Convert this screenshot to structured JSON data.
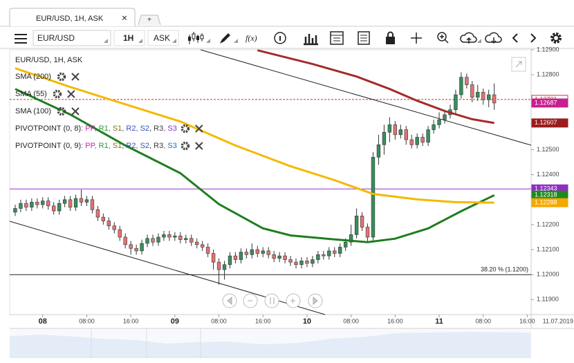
{
  "tab": {
    "title": "EUR/USD, 1H, ASK",
    "close": "×",
    "new": "+"
  },
  "toolbar": {
    "symbol": "EUR/USD",
    "interval": "1H",
    "side": "ASK",
    "function": "f(x)"
  },
  "legend": {
    "instrument": "EUR/USD, 1H, ASK",
    "pivots": [
      {
        "name": "PIVOTPOINT (0, 8)",
        "parts": [
          {
            "text": ": PP",
            "color": "#c71fb5"
          },
          {
            "text": ", R1",
            "color": "#1f9e3a"
          },
          {
            "text": ", S1",
            "color": "#8a6d1f"
          },
          {
            "text": ", R2",
            "color": "#3b4fb8"
          },
          {
            "text": ", S2",
            "color": "#3b4fb8"
          },
          {
            "text": ", R3",
            "color": "#3a3a3a"
          },
          {
            "text": ", S3",
            "color": "#8e2fc2"
          }
        ]
      },
      {
        "name": "PIVOTPOINT (0, 9)",
        "parts": [
          {
            "text": ": PP",
            "color": "#c71fb5"
          },
          {
            "text": ", R1",
            "color": "#1f9e3a"
          },
          {
            "text": ", S1",
            "color": "#8a6d1f"
          },
          {
            "text": ", R2",
            "color": "#3b4fb8"
          },
          {
            "text": ", S2",
            "color": "#3b4fb8"
          },
          {
            "text": ", R3",
            "color": "#3a3a3a"
          },
          {
            "text": ", S3",
            "color": "#1f6fb8"
          }
        ]
      }
    ]
  },
  "chart_data": {
    "type": "candlestick",
    "xlim": [
      -6,
      88.7
    ],
    "ylim": [
      1.1184,
      1.129
    ],
    "xticks": [
      {
        "value": 0,
        "label": "08"
      },
      {
        "value": 8,
        "label": "08:00"
      },
      {
        "value": 16,
        "label": "16:00"
      },
      {
        "value": 24,
        "label": "09"
      },
      {
        "value": 32,
        "label": "08:00"
      },
      {
        "value": 40,
        "label": "16:00"
      },
      {
        "value": 48,
        "label": "10"
      },
      {
        "value": 56,
        "label": "08:00"
      },
      {
        "value": 64,
        "label": "16:00"
      },
      {
        "value": 72,
        "label": "11"
      },
      {
        "value": 80,
        "label": "08:00"
      },
      {
        "value": 88,
        "label": "16:00"
      }
    ],
    "date_label": "11.07.2019",
    "yticks": [
      {
        "value": 1.119,
        "label": "1.11900"
      },
      {
        "value": 1.12,
        "label": "1.12000"
      },
      {
        "value": 1.121,
        "label": "1.12100"
      },
      {
        "value": 1.122,
        "label": "1.12200"
      },
      {
        "value": 1.124,
        "label": "1.12400"
      },
      {
        "value": 1.125,
        "label": "1.12500"
      },
      {
        "value": 1.128,
        "label": "1.12800"
      },
      {
        "value": 1.129,
        "label": "1.12900"
      }
    ],
    "x": [
      -5,
      -4,
      -3,
      -2,
      -1,
      0,
      1,
      2,
      3,
      4,
      5,
      6,
      7,
      8,
      9,
      10,
      11,
      12,
      13,
      14,
      15,
      16,
      17,
      18,
      19,
      20,
      21,
      22,
      23,
      24,
      25,
      26,
      27,
      28,
      29,
      30,
      31,
      32,
      33,
      34,
      35,
      36,
      37,
      38,
      39,
      40,
      41,
      42,
      43,
      44,
      45,
      46,
      47,
      48,
      49,
      50,
      51,
      52,
      53,
      54,
      55,
      56,
      57,
      58,
      59,
      60,
      61,
      62,
      63,
      64,
      65,
      66,
      67,
      68,
      69,
      70,
      71,
      72,
      73,
      74,
      75,
      76,
      77,
      78,
      79,
      80,
      81,
      82
    ],
    "open": [
      1.1225,
      1.12265,
      1.12285,
      1.1227,
      1.1229,
      1.1228,
      1.12295,
      1.12275,
      1.12255,
      1.12285,
      1.123,
      1.1227,
      1.12305,
      1.1229,
      1.123,
      1.1226,
      1.1223,
      1.12215,
      1.12195,
      1.1218,
      1.1215,
      1.1212,
      1.12105,
      1.12095,
      1.12125,
      1.12145,
      1.1213,
      1.1215,
      1.1216,
      1.1215,
      1.12155,
      1.1214,
      1.12145,
      1.1213,
      1.1212,
      1.1211,
      1.12085,
      1.1205,
      1.1202,
      1.1204,
      1.12075,
      1.1206,
      1.1209,
      1.1208,
      1.121,
      1.12085,
      1.12095,
      1.1208,
      1.12065,
      1.12075,
      1.1206,
      1.1205,
      1.1204,
      1.12055,
      1.12045,
      1.1206,
      1.1208,
      1.12075,
      1.12095,
      1.12085,
      1.1211,
      1.1213,
      1.1216,
      1.12235,
      1.1219,
      1.1215,
      1.1247,
      1.1252,
      1.1257,
      1.126,
      1.1256,
      1.1258,
      1.1254,
      1.1252,
      1.1255,
      1.1253,
      1.1258,
      1.126,
      1.1262,
      1.1264,
      1.1266,
      1.1272,
      1.1279,
      1.1276,
      1.1271,
      1.1273,
      1.127,
      1.1272
    ],
    "high": [
      1.1228,
      1.123,
      1.123,
      1.12305,
      1.12305,
      1.1231,
      1.1231,
      1.1229,
      1.123,
      1.12315,
      1.12315,
      1.1232,
      1.1234,
      1.12315,
      1.12315,
      1.12275,
      1.12245,
      1.1223,
      1.1221,
      1.12195,
      1.12165,
      1.12135,
      1.1212,
      1.1214,
      1.1216,
      1.1216,
      1.12165,
      1.12175,
      1.12175,
      1.1217,
      1.1217,
      1.1216,
      1.1216,
      1.12145,
      1.12135,
      1.12125,
      1.121,
      1.12065,
      1.12055,
      1.1209,
      1.1209,
      1.12105,
      1.12105,
      1.12125,
      1.12115,
      1.1211,
      1.1211,
      1.12095,
      1.1209,
      1.1209,
      1.12075,
      1.12065,
      1.1207,
      1.1207,
      1.12075,
      1.12095,
      1.12095,
      1.1211,
      1.1211,
      1.12125,
      1.12145,
      1.122,
      1.12265,
      1.1225,
      1.12205,
      1.1249,
      1.1256,
      1.126,
      1.1263,
      1.12615,
      1.126,
      1.12595,
      1.1256,
      1.12565,
      1.12565,
      1.12595,
      1.1262,
      1.1265,
      1.1266,
      1.1268,
      1.1274,
      1.1281,
      1.12805,
      1.12775,
      1.1276,
      1.12745,
      1.1274,
      1.12765
    ],
    "low": [
      1.12235,
      1.1225,
      1.12255,
      1.12255,
      1.12265,
      1.12265,
      1.1226,
      1.1224,
      1.1224,
      1.1227,
      1.12255,
      1.12255,
      1.12275,
      1.12275,
      1.12245,
      1.12215,
      1.122,
      1.1218,
      1.12165,
      1.12135,
      1.12105,
      1.1208,
      1.1208,
      1.1208,
      1.1211,
      1.12115,
      1.12115,
      1.12135,
      1.12135,
      1.12135,
      1.12125,
      1.12125,
      1.12115,
      1.12105,
      1.12095,
      1.1207,
      1.1202,
      1.1196,
      1.1198,
      1.12025,
      1.12045,
      1.12045,
      1.12065,
      1.12065,
      1.1207,
      1.1207,
      1.12065,
      1.1205,
      1.1205,
      1.12045,
      1.12035,
      1.12025,
      1.12025,
      1.1203,
      1.1203,
      1.12045,
      1.1206,
      1.1206,
      1.1207,
      1.1207,
      1.12095,
      1.12115,
      1.12145,
      1.12175,
      1.1213,
      1.12135,
      1.1244,
      1.1248,
      1.1253,
      1.1254,
      1.12545,
      1.1252,
      1.12505,
      1.12505,
      1.12515,
      1.12515,
      1.12565,
      1.12585,
      1.12605,
      1.12625,
      1.12645,
      1.12705,
      1.12745,
      1.1269,
      1.12695,
      1.1268,
      1.1267,
      1.1266
    ],
    "close": [
      1.12265,
      1.12285,
      1.1227,
      1.1229,
      1.1228,
      1.12295,
      1.12275,
      1.12255,
      1.12285,
      1.123,
      1.1227,
      1.12305,
      1.1229,
      1.123,
      1.1226,
      1.1223,
      1.12215,
      1.12195,
      1.1218,
      1.1215,
      1.1212,
      1.12105,
      1.12095,
      1.12125,
      1.12145,
      1.1213,
      1.1215,
      1.1216,
      1.1215,
      1.12155,
      1.1214,
      1.12145,
      1.1213,
      1.1212,
      1.1211,
      1.12085,
      1.1205,
      1.1202,
      1.1204,
      1.12075,
      1.1206,
      1.1209,
      1.1208,
      1.121,
      1.12085,
      1.12095,
      1.1208,
      1.12065,
      1.12075,
      1.1206,
      1.1205,
      1.1204,
      1.12055,
      1.12045,
      1.1206,
      1.1208,
      1.12075,
      1.12095,
      1.12085,
      1.1211,
      1.1213,
      1.1216,
      1.12235,
      1.1219,
      1.1215,
      1.1247,
      1.1252,
      1.1257,
      1.126,
      1.1256,
      1.1258,
      1.1254,
      1.1252,
      1.1255,
      1.1253,
      1.1258,
      1.126,
      1.1262,
      1.1264,
      1.1266,
      1.1272,
      1.1279,
      1.1276,
      1.1271,
      1.1273,
      1.127,
      1.1272,
      1.12687
    ],
    "up_color": "#3a8d5d",
    "down_color": "#e57373",
    "series": [
      {
        "name": "SMA (200)",
        "color": "#a52a2a",
        "x": [
          39,
          49,
          57,
          63,
          68,
          73,
          78,
          82
        ],
        "values": [
          1.12898,
          1.12843,
          1.12793,
          1.12743,
          1.12696,
          1.12655,
          1.12622,
          1.12607
        ]
      },
      {
        "name": "SMA (55)",
        "color": "#1e7d1e",
        "x": [
          -5,
          5,
          15,
          25,
          32,
          40,
          45,
          53,
          59,
          64,
          70,
          76,
          82
        ],
        "values": [
          1.12743,
          1.12641,
          1.12517,
          1.12406,
          1.12282,
          1.12185,
          1.12157,
          1.12141,
          1.1213,
          1.12144,
          1.12185,
          1.12254,
          1.12318
        ]
      },
      {
        "name": "SMA (100)",
        "color": "#f5b800",
        "x": [
          -5,
          5,
          15,
          25,
          35,
          45,
          53,
          60,
          68,
          75,
          82
        ],
        "values": [
          1.12826,
          1.12751,
          1.12682,
          1.12613,
          1.12517,
          1.12434,
          1.12378,
          1.12323,
          1.12301,
          1.1229,
          1.12288
        ]
      }
    ],
    "levels": [
      {
        "value": 1.12701,
        "color": "#c0392b",
        "dashed": true
      },
      {
        "value": 1.12343,
        "color": "#9b30c8",
        "dashed": false
      }
    ],
    "fib": {
      "value": 1.12,
      "label": "38.20 % (1.1200)"
    },
    "badges": [
      {
        "value": 1.12701,
        "color": "#c0392b",
        "outline": true
      },
      {
        "value": 1.12687,
        "color": "#c71f8f",
        "outline": false
      },
      {
        "value": 1.12607,
        "color": "#9b1c1c",
        "outline": false
      },
      {
        "value": 1.12343,
        "color": "#8e2fc2",
        "outline": false
      },
      {
        "value": 1.12318,
        "color": "#1e8a1e",
        "outline": false
      },
      {
        "value": 1.12288,
        "color": "#f5a800",
        "outline": false
      }
    ]
  }
}
